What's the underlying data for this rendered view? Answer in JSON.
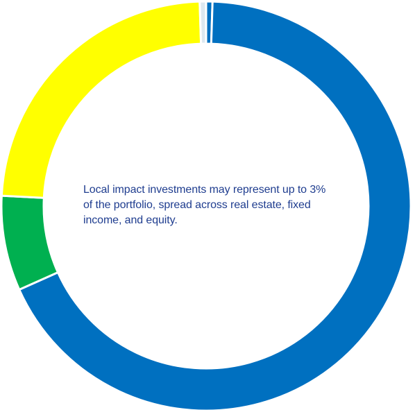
{
  "chart_data": {
    "type": "pie",
    "donut": true,
    "title": "",
    "legend": "none",
    "slices": [
      {
        "value": 0.5,
        "color": "#0070C0"
      },
      {
        "value": 67.8,
        "color": "#0070C0"
      },
      {
        "value": 7.5,
        "color": "#00B050"
      },
      {
        "value": 23.7,
        "color": "#FFFF00"
      },
      {
        "value": 0.5,
        "color": "#DDE8F0"
      }
    ],
    "annotation": "Local impact investments may represent up to 3% of the portfolio, spread across real estate, fixed income, and equity."
  },
  "colors": {
    "separator": "#ffffff",
    "text": "#1F3D8F"
  }
}
